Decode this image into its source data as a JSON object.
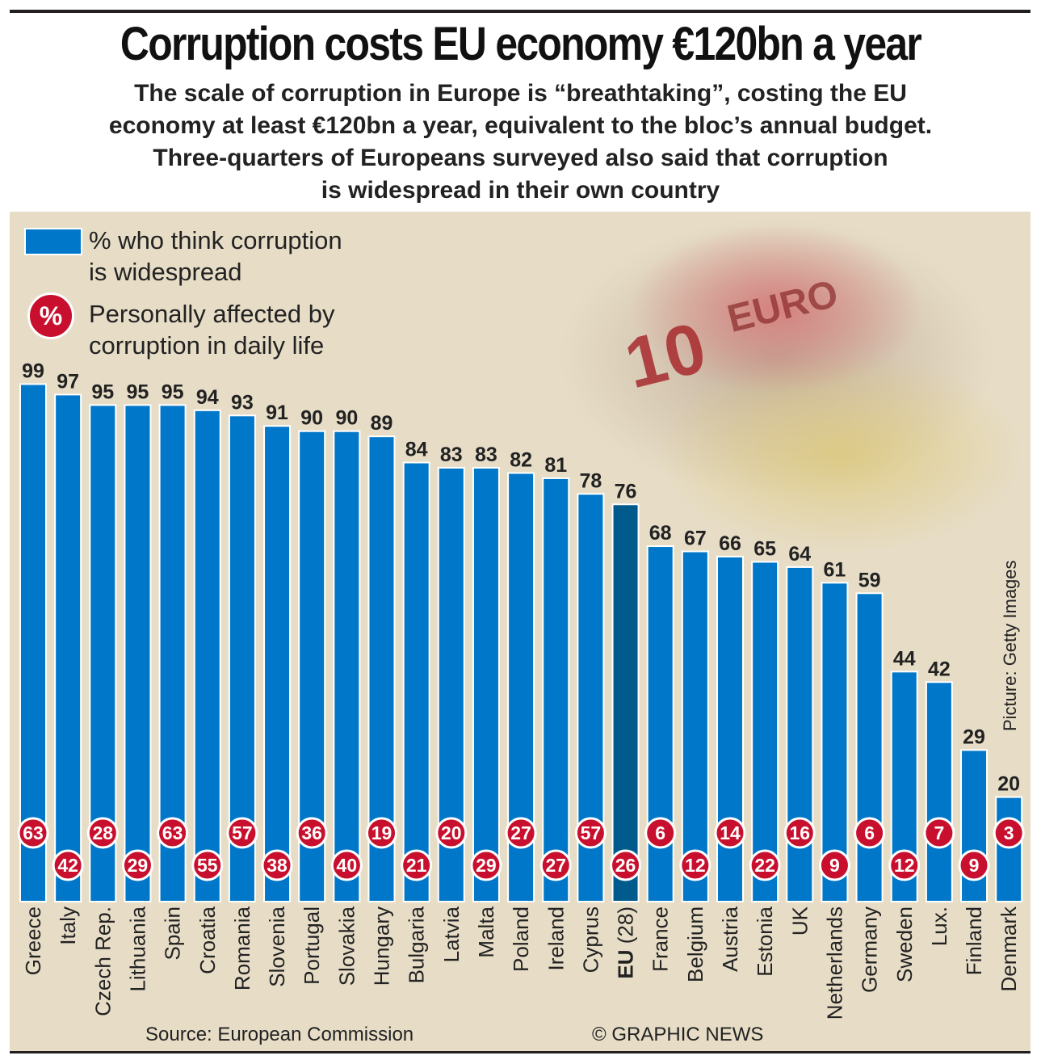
{
  "header": {
    "title": "Corruption costs EU economy €120bn a year",
    "subtitle_lines": [
      "The scale of corruption in Europe is “breathtaking”, costing the EU",
      "economy at least €120bn a year, equivalent to the bloc’s annual budget.",
      "Three-quarters of Europeans surveyed also said that corruption",
      "is widespread in their own country"
    ]
  },
  "legend": {
    "bar_label_line1": "% who think corruption",
    "bar_label_line2": "is widespread",
    "circle_symbol": "%",
    "circle_label_line1": "Personally affected by",
    "circle_label_line2": "corruption in daily life"
  },
  "photo": {
    "credit": "Picture: Getty Images",
    "note_text": "10",
    "note_word": "EURO"
  },
  "footer": {
    "source": "Source: European Commission",
    "copyright": "© GRAPHIC NEWS"
  },
  "colors": {
    "bar": "#0077c8",
    "bar_highlight": "#005a8c",
    "circle": "#c8102e",
    "background": "#e7ddc7"
  },
  "chart_data": {
    "type": "bar",
    "title": "Corruption costs EU economy €120bn a year",
    "ylim": [
      0,
      100
    ],
    "grid": false,
    "legend_position": "top-left",
    "categories": [
      "Greece",
      "Italy",
      "Czech Rep.",
      "Lithuania",
      "Spain",
      "Croatia",
      "Romania",
      "Slovenia",
      "Portugal",
      "Slovakia",
      "Hungary",
      "Bulgaria",
      "Latvia",
      "Malta",
      "Poland",
      "Ireland",
      "Cyprus",
      "EU",
      "France",
      "Belgium",
      "Austria",
      "Estonia",
      "UK",
      "Netherlands",
      "Germany",
      "Sweden",
      "Lux.",
      "Finland",
      "Denmark"
    ],
    "category_suffix": {
      "EU": "(28)"
    },
    "highlight": "EU",
    "series": [
      {
        "name": "% who think corruption is widespread",
        "values": [
          99,
          97,
          95,
          95,
          95,
          94,
          93,
          91,
          90,
          90,
          89,
          84,
          83,
          83,
          82,
          81,
          78,
          76,
          68,
          67,
          66,
          65,
          64,
          61,
          59,
          44,
          42,
          29,
          20
        ]
      },
      {
        "name": "Personally affected by corruption in daily life",
        "values": [
          63,
          42,
          28,
          29,
          63,
          55,
          57,
          38,
          36,
          40,
          19,
          21,
          20,
          29,
          27,
          27,
          57,
          26,
          6,
          12,
          14,
          22,
          16,
          9,
          6,
          12,
          7,
          9,
          3
        ]
      }
    ]
  }
}
